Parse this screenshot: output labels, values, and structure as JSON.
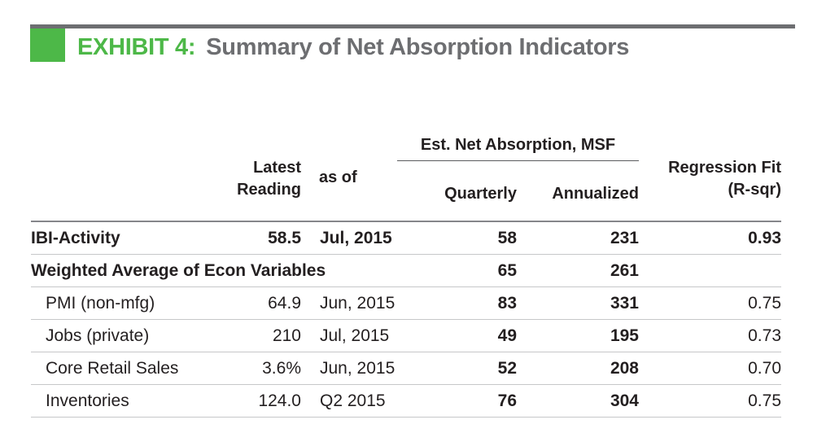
{
  "header": {
    "exhibit_label": "EXHIBIT 4:",
    "title": "Summary of Net Absorption Indicators",
    "accent_color": "#4db848",
    "title_color": "#6d6e71"
  },
  "table": {
    "headers": {
      "latest_reading_line1": "Latest",
      "latest_reading_line2": "Reading",
      "as_of": "as of",
      "group": "Est. Net Absorption, MSF",
      "quarterly": "Quarterly",
      "annualized": "Annualized",
      "regression_line1": "Regression Fit",
      "regression_line2": "(R-sqr)"
    },
    "rows": [
      {
        "label": "IBI-Activity",
        "reading": "58.5",
        "as_of": "Jul, 2015",
        "quarterly": "58",
        "annualized": "231",
        "rsqr": "0.93"
      },
      {
        "label": "Weighted Average of Econ Variables",
        "reading": "",
        "as_of": "",
        "quarterly": "65",
        "annualized": "261",
        "rsqr": ""
      },
      {
        "label": "PMI (non-mfg)",
        "reading": "64.9",
        "as_of": "Jun, 2015",
        "quarterly": "83",
        "annualized": "331",
        "rsqr": "0.75"
      },
      {
        "label": "Jobs (private)",
        "reading": "210",
        "as_of": "Jul, 2015",
        "quarterly": "49",
        "annualized": "195",
        "rsqr": "0.73"
      },
      {
        "label": "Core Retail Sales",
        "reading": "3.6%",
        "as_of": "Jun, 2015",
        "quarterly": "52",
        "annualized": "208",
        "rsqr": "0.70"
      },
      {
        "label": "Inventories",
        "reading": "124.0",
        "as_of": "Q2 2015",
        "quarterly": "76",
        "annualized": "304",
        "rsqr": "0.75"
      }
    ]
  }
}
